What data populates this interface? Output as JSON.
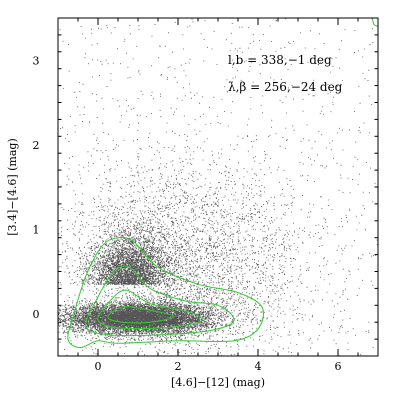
{
  "chart_data": {
    "type": "scatter",
    "xlabel": "[4.6]−[12] (mag)",
    "ylabel": "[3.4]−[4.6] (mag)",
    "xlim": [
      -1,
      7
    ],
    "ylim": [
      -0.5,
      3.5
    ],
    "x_ticks": [
      0,
      2,
      4,
      6
    ],
    "x_tick_labels": [
      "0",
      "2",
      "4",
      "6"
    ],
    "y_ticks": [
      0,
      1,
      2,
      3
    ],
    "y_tick_labels": [
      "0",
      "1",
      "2",
      "3"
    ],
    "annotations": [
      {
        "text": "l,b  =  338,−1 deg"
      },
      {
        "text": "λ,β  =  256,−24 deg"
      }
    ],
    "colors": {
      "points": "#555555",
      "contours": "#33cc33",
      "frame": "#000000"
    },
    "grid": false,
    "legend": "none",
    "density": {
      "core": {
        "x": 1.0,
        "y": -0.05,
        "sx": 0.9,
        "sy": 0.09
      },
      "plume": {
        "x": 0.8,
        "y": 0.35,
        "sx": 0.5,
        "sy": 0.3
      },
      "halo": {
        "x": 2.3,
        "y": 0.6,
        "sx": 1.5,
        "sy": 0.6
      }
    },
    "contours": [
      {
        "level": 1,
        "points": [
          [
            -0.75,
            -0.3
          ],
          [
            -0.6,
            0.0
          ],
          [
            -0.3,
            0.45
          ],
          [
            0.1,
            0.8
          ],
          [
            0.5,
            0.9
          ],
          [
            0.9,
            0.85
          ],
          [
            1.5,
            0.55
          ],
          [
            2.5,
            0.35
          ],
          [
            3.5,
            0.25
          ],
          [
            4.1,
            0.08
          ],
          [
            4.0,
            -0.18
          ],
          [
            3.4,
            -0.32
          ],
          [
            2.0,
            -0.32
          ],
          [
            0.5,
            -0.35
          ],
          [
            0.0,
            -0.32
          ],
          [
            -0.45,
            -0.4
          ]
        ]
      },
      {
        "level": 2,
        "points": [
          [
            -0.3,
            -0.15
          ],
          [
            0.0,
            0.2
          ],
          [
            0.4,
            0.5
          ],
          [
            0.8,
            0.55
          ],
          [
            1.3,
            0.3
          ],
          [
            2.2,
            0.15
          ],
          [
            3.0,
            0.1
          ],
          [
            3.4,
            -0.08
          ],
          [
            2.8,
            -0.2
          ],
          [
            1.5,
            -0.25
          ],
          [
            0.3,
            -0.25
          ]
        ]
      },
      {
        "level": 3,
        "points": [
          [
            0.0,
            -0.08
          ],
          [
            0.3,
            0.15
          ],
          [
            0.7,
            0.28
          ],
          [
            1.3,
            0.12
          ],
          [
            2.2,
            0.03
          ],
          [
            2.6,
            -0.08
          ],
          [
            1.8,
            -0.16
          ],
          [
            0.6,
            -0.17
          ]
        ]
      },
      {
        "level": 4,
        "points": [
          [
            0.25,
            -0.04
          ],
          [
            0.6,
            0.08
          ],
          [
            1.2,
            0.05
          ],
          [
            1.9,
            -0.03
          ],
          [
            1.3,
            -0.1
          ],
          [
            0.6,
            -0.1
          ]
        ]
      }
    ],
    "corner_contour": {
      "points": [
        [
          6.85,
          3.5
        ],
        [
          6.9,
          3.42
        ],
        [
          7.0,
          3.4
        ],
        [
          7.0,
          3.5
        ]
      ]
    }
  }
}
